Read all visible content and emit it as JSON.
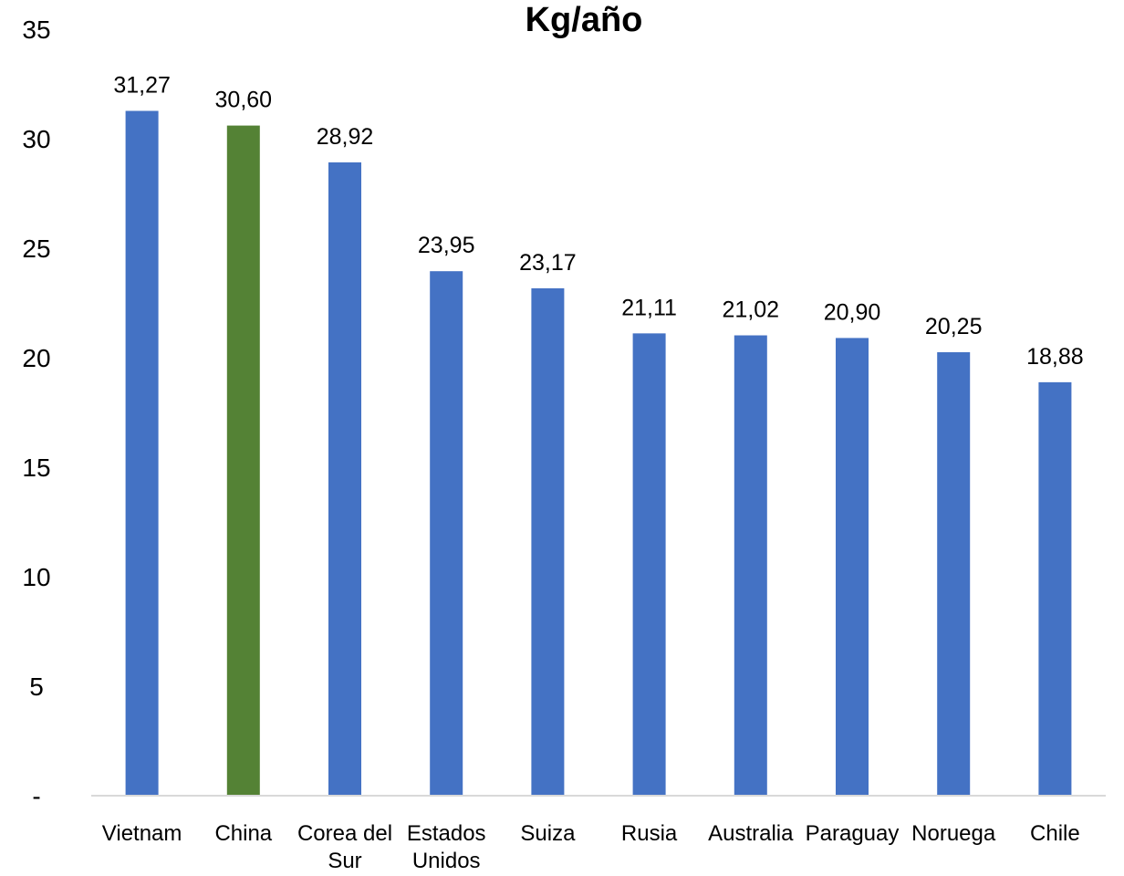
{
  "chart_data": {
    "type": "bar",
    "title": "Kg/año",
    "categories": [
      [
        "Vietnam"
      ],
      [
        "China"
      ],
      [
        "Corea del",
        "Sur"
      ],
      [
        "Estados",
        "Unidos"
      ],
      [
        "Suiza"
      ],
      [
        "Rusia"
      ],
      [
        "Australia"
      ],
      [
        "Paraguay"
      ],
      [
        "Noruega"
      ],
      [
        "Chile"
      ]
    ],
    "values": [
      31.27,
      30.6,
      28.92,
      23.95,
      23.17,
      21.11,
      21.02,
      20.9,
      20.25,
      18.88
    ],
    "value_labels": [
      "31,27",
      "30,60",
      "28,92",
      "23,95",
      "23,17",
      "21,11",
      "21,02",
      "20,90",
      "20,25",
      "18,88"
    ],
    "bar_colors": [
      "#4472C4",
      "#548235",
      "#4472C4",
      "#4472C4",
      "#4472C4",
      "#4472C4",
      "#4472C4",
      "#4472C4",
      "#4472C4",
      "#4472C4"
    ],
    "ylim": [
      0,
      35
    ],
    "yticks": [
      0,
      5,
      10,
      15,
      20,
      25,
      30,
      35
    ],
    "ytick_labels": [
      "-",
      "5",
      "10",
      "15",
      "20",
      "25",
      "30",
      "35"
    ],
    "xlabel": "",
    "ylabel": "",
    "grid": false,
    "legend": "none",
    "axis_color": "#D9D9D9"
  }
}
